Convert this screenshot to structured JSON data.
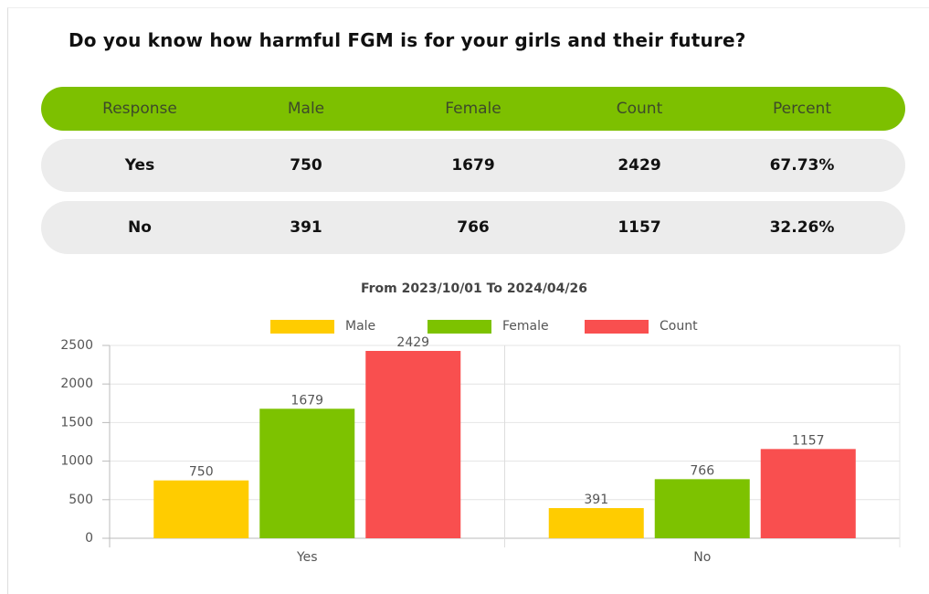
{
  "title": "Do you know how harmful FGM is for your girls and their future?",
  "table": {
    "header": [
      "Response",
      "Male",
      "Female",
      "Count",
      "Percent"
    ],
    "rows": [
      [
        "Yes",
        "750",
        "1679",
        "2429",
        "67.73%"
      ],
      [
        "No",
        "391",
        "766",
        "1157",
        "32.26%"
      ]
    ]
  },
  "chart_data": {
    "type": "bar",
    "title": "From 2023/10/01 To 2024/04/26",
    "categories": [
      "Yes",
      "No"
    ],
    "series": [
      {
        "name": "Male",
        "color": "#ffcc00",
        "values": [
          750,
          391
        ]
      },
      {
        "name": "Female",
        "color": "#7dc200",
        "values": [
          1679,
          766
        ]
      },
      {
        "name": "Count",
        "color": "#f94f4f",
        "values": [
          2429,
          1157
        ]
      }
    ],
    "ylim": [
      0,
      2500
    ],
    "yticks": [
      0,
      500,
      1000,
      1500,
      2000,
      2500
    ],
    "grid": true,
    "legend": "top"
  }
}
